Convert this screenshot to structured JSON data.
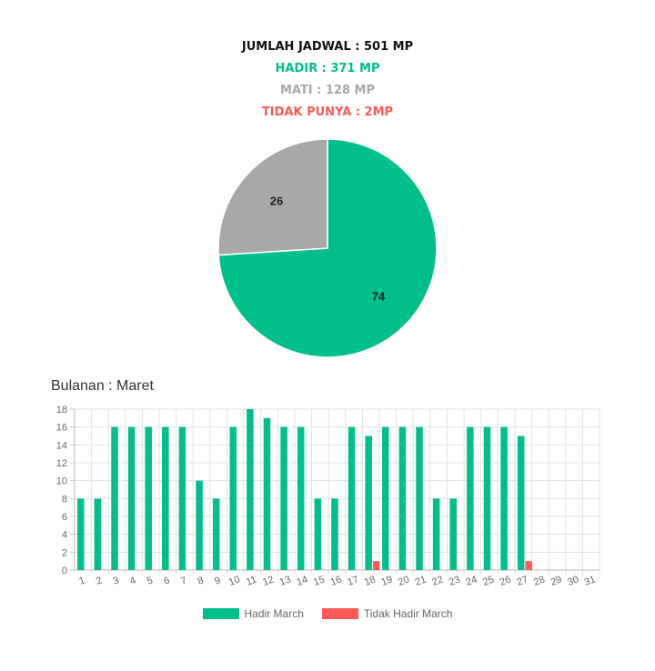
{
  "summary": {
    "total": "JUMLAH JADWAL : 501 MP",
    "hadir": "HADIR : 371 MP",
    "mati": "MATI : 128 MP",
    "tidak_punya": "TIDAK PUNYA : 2MP"
  },
  "colors": {
    "green": "#00bf8a",
    "gray": "#a8a8a8",
    "red": "#ff5a57",
    "black": "#111111"
  },
  "section_title": "Bulanan : Maret",
  "chart_data": [
    {
      "type": "pie",
      "values": [
        74,
        26
      ],
      "labels": [
        "74",
        "26"
      ],
      "colors": [
        "#00bf8a",
        "#a8a8a8"
      ]
    },
    {
      "type": "bar",
      "categories": [
        "1",
        "2",
        "3",
        "4",
        "5",
        "6",
        "7",
        "8",
        "9",
        "10",
        "11",
        "12",
        "13",
        "14",
        "15",
        "16",
        "17",
        "18",
        "19",
        "20",
        "21",
        "22",
        "23",
        "24",
        "25",
        "26",
        "27",
        "28",
        "29",
        "30",
        "31"
      ],
      "series": [
        {
          "name": "Hadir March",
          "color": "#00bf8a",
          "values": [
            8,
            8,
            16,
            16,
            16,
            16,
            16,
            10,
            8,
            16,
            18,
            17,
            16,
            16,
            8,
            8,
            16,
            15,
            16,
            16,
            16,
            8,
            8,
            16,
            16,
            16,
            15,
            0,
            0,
            0,
            0
          ]
        },
        {
          "name": "Tidak Hadir March",
          "color": "#ff5a57",
          "values": [
            0,
            0,
            0,
            0,
            0,
            0,
            0,
            0,
            0,
            0,
            0,
            0,
            0,
            0,
            0,
            0,
            0,
            1,
            0,
            0,
            0,
            0,
            0,
            0,
            0,
            0,
            1,
            0,
            0,
            0,
            0
          ]
        }
      ],
      "ylim": [
        0,
        18
      ],
      "yticks": [
        0,
        2,
        4,
        6,
        8,
        10,
        12,
        14,
        16,
        18
      ],
      "grid": true,
      "legend": "bottom"
    }
  ]
}
